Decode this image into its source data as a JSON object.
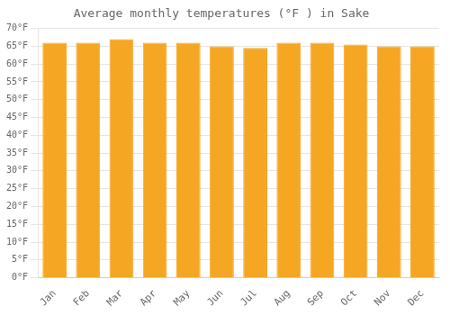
{
  "chart_data": {
    "type": "bar",
    "title": "Average monthly temperatures (°F ) in Sake",
    "categories": [
      "Jan",
      "Feb",
      "Mar",
      "Apr",
      "May",
      "Jun",
      "Jul",
      "Aug",
      "Sep",
      "Oct",
      "Nov",
      "Dec"
    ],
    "values": [
      66,
      66,
      67,
      66,
      66,
      65,
      64.5,
      66,
      66,
      65.5,
      65,
      65
    ],
    "color": "#F5A623",
    "ylim": [
      0,
      70
    ],
    "yticks": [
      {
        "value": 0,
        "label": "0°F"
      },
      {
        "value": 5,
        "label": "5°F"
      },
      {
        "value": 10,
        "label": "10°F"
      },
      {
        "value": 15,
        "label": "15°F"
      },
      {
        "value": 20,
        "label": "20°F"
      },
      {
        "value": 25,
        "label": "25°F"
      },
      {
        "value": 30,
        "label": "30°F"
      },
      {
        "value": 35,
        "label": "35°F"
      },
      {
        "value": 40,
        "label": "40°F"
      },
      {
        "value": 45,
        "label": "45°F"
      },
      {
        "value": 50,
        "label": "50°F"
      },
      {
        "value": 55,
        "label": "55°F"
      },
      {
        "value": 60,
        "label": "60°F"
      },
      {
        "value": 65,
        "label": "65°F"
      },
      {
        "value": 70,
        "label": "70°F"
      }
    ],
    "grid": true
  }
}
